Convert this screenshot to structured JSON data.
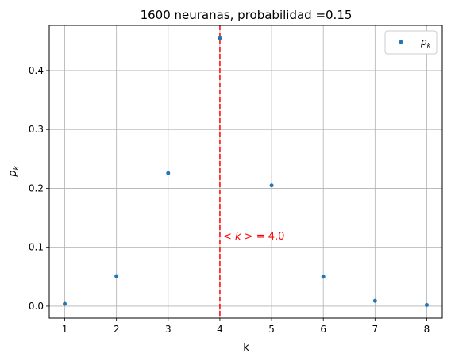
{
  "chart_data": {
    "type": "scatter",
    "title": "1600 neuranas, probabilidad =0.15",
    "xlabel": "k",
    "ylabel": "p_k",
    "xlim": [
      0.7,
      8.3
    ],
    "ylim": [
      -0.0203,
      0.4767
    ],
    "xticks": [
      1,
      2,
      3,
      4,
      5,
      6,
      7,
      8
    ],
    "yticks": [
      0.0,
      0.1,
      0.2,
      0.3,
      0.4
    ],
    "grid": true,
    "legend_position": "top-right",
    "series": [
      {
        "name": "p_k",
        "color": "#1f77b4",
        "x": [
          1,
          2,
          3,
          4,
          5,
          6,
          7,
          8
        ],
        "y": [
          0.004,
          0.051,
          0.226,
          0.455,
          0.205,
          0.05,
          0.009,
          0.002
        ]
      }
    ],
    "vline": {
      "x": 4.0,
      "color": "#ff0000",
      "style": "dashed",
      "label_text": " = 4.0"
    }
  }
}
